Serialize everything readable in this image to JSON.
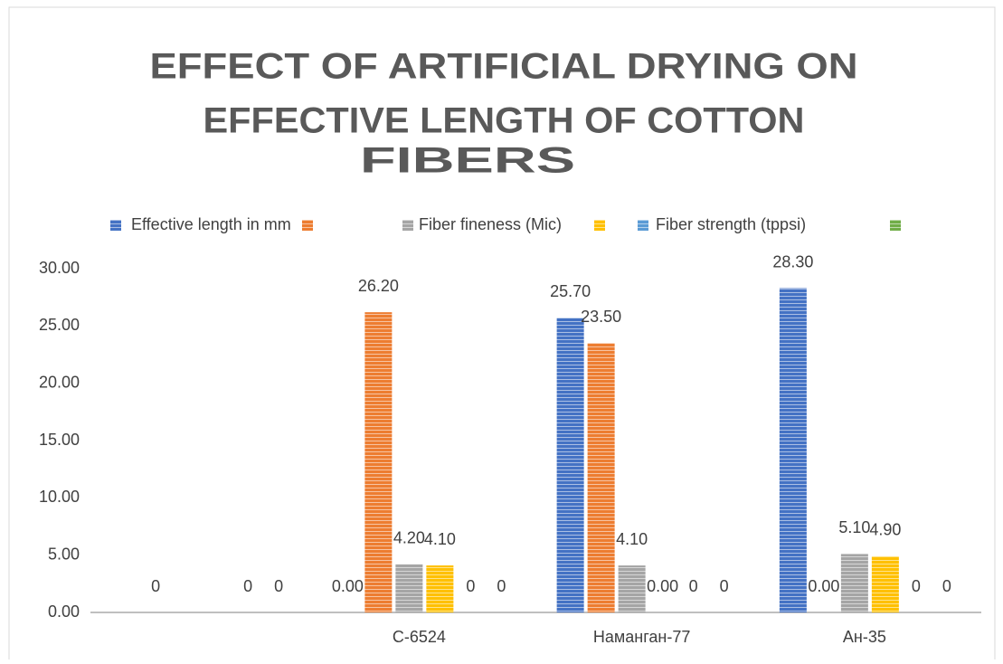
{
  "chart_data": {
    "type": "bar",
    "title": [
      "EFFECT OF ARTIFICIAL DRYING ON",
      "EFFECTIVE LENGTH OF COTTON",
      "FIBERS"
    ],
    "categories": [
      null,
      "С-6524",
      "Наманган-77",
      "Ан-35"
    ],
    "series": [
      {
        "name": "Effective length in mm",
        "color": "#4472c4",
        "values": [
          null,
          0,
          25.7,
          28.3
        ],
        "value_labels": [
          null,
          "0.00",
          "25.70",
          "28.30"
        ]
      },
      {
        "name": null,
        "color": "#ed7d31",
        "values": [
          0,
          26.2,
          23.5,
          0
        ],
        "value_labels": [
          "0",
          "26.20",
          "23.50",
          "0.00"
        ]
      },
      {
        "name": "Fiber fineness (Mic)",
        "color": "#a5a5a5",
        "values": [
          null,
          4.2,
          4.1,
          5.1
        ],
        "value_labels": [
          null,
          "4.20",
          "4.10",
          "5.10"
        ]
      },
      {
        "name": null,
        "color": "#ffc000",
        "values": [
          null,
          4.1,
          0,
          4.9
        ],
        "value_labels": [
          null,
          "4.10",
          "0.00",
          "4.90"
        ]
      },
      {
        "name": "Fiber strength (tppsi)",
        "color": "#5b9bd5",
        "values": [
          0,
          0,
          0,
          0
        ],
        "value_labels": [
          "0",
          "0",
          "0",
          "0"
        ]
      },
      {
        "name": null,
        "color": "#70ad47",
        "values": [
          0,
          0,
          0,
          0
        ],
        "value_labels": [
          "0",
          "0",
          "0",
          "0"
        ]
      }
    ],
    "ylim": [
      0,
      30
    ],
    "yticks": [
      {
        "value": 0,
        "label": "0.00"
      },
      {
        "value": 5,
        "label": "5.00"
      },
      {
        "value": 10,
        "label": "10.00"
      },
      {
        "value": 15,
        "label": "15.00"
      },
      {
        "value": 20,
        "label": "20.00"
      },
      {
        "value": 25,
        "label": "25.00"
      },
      {
        "value": 30,
        "label": "30.00"
      }
    ],
    "grid": false,
    "legend": "top"
  }
}
